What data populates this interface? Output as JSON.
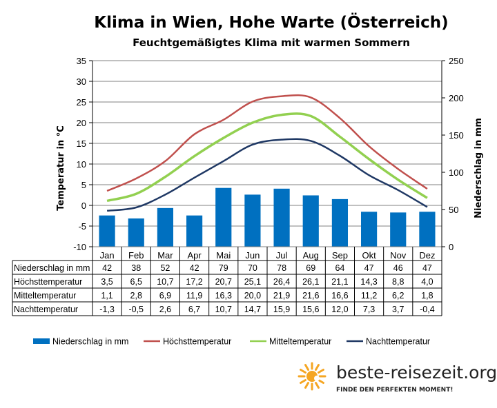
{
  "chart_data": {
    "type": "bar+line",
    "title": "Klima in Wien, Hohe Warte (Österreich)",
    "subtitle": "Feuchtgemäßigtes  Klima mit warmen Sommern",
    "categories": [
      "Jan",
      "Feb",
      "Mar",
      "Apr",
      "Mai",
      "Jun",
      "Jul",
      "Aug",
      "Sep",
      "Okt",
      "Nov",
      "Dez"
    ],
    "y_left": {
      "label": "Temperatur in °C",
      "min": -10,
      "max": 35,
      "ticks": [
        35,
        30,
        25,
        20,
        15,
        10,
        5,
        0,
        -5,
        -10
      ]
    },
    "y_right": {
      "label": "Niederschlag in mm",
      "min": 0,
      "max": 250,
      "ticks": [
        250,
        200,
        150,
        100,
        50,
        0
      ]
    },
    "grid": true,
    "legend_position": "bottom",
    "bars": {
      "name": "Niederschlag in mm",
      "axis": "right",
      "color": "#0070C0",
      "values": [
        42,
        38,
        52,
        42,
        79,
        70,
        78,
        69,
        64,
        47,
        46,
        47
      ]
    },
    "series": [
      {
        "name": "Höchsttemperatur",
        "color": "#C0504D",
        "values": [
          3.5,
          6.5,
          10.7,
          17.2,
          20.7,
          25.1,
          26.4,
          26.1,
          21.1,
          14.3,
          8.8,
          4.0
        ]
      },
      {
        "name": "Mitteltemperatur",
        "color": "#92D050",
        "values": [
          1.1,
          2.8,
          6.9,
          11.9,
          16.3,
          20.0,
          21.9,
          21.6,
          16.6,
          11.2,
          6.2,
          1.8
        ]
      },
      {
        "name": "Nachttemperatur",
        "color": "#1F3864",
        "values": [
          -1.3,
          -0.5,
          2.6,
          6.7,
          10.7,
          14.7,
          15.9,
          15.6,
          12.0,
          7.3,
          3.7,
          -0.4
        ]
      }
    ],
    "table": {
      "rows": [
        {
          "label": "Niederschlag in mm",
          "values": [
            "42",
            "38",
            "52",
            "42",
            "79",
            "70",
            "78",
            "69",
            "64",
            "47",
            "46",
            "47"
          ]
        },
        {
          "label": "Höchsttemperatur",
          "values": [
            "3,5",
            "6,5",
            "10,7",
            "17,2",
            "20,7",
            "25,1",
            "26,4",
            "26,1",
            "21,1",
            "14,3",
            "8,8",
            "4,0"
          ]
        },
        {
          "label": "Mitteltemperatur",
          "values": [
            "1,1",
            "2,8",
            "6,9",
            "11,9",
            "16,3",
            "20,0",
            "21,9",
            "21,6",
            "16,6",
            "11,2",
            "6,2",
            "1,8"
          ]
        },
        {
          "label": "Nachttemperatur",
          "values": [
            "-1,3",
            "-0,5",
            "2,6",
            "6,7",
            "10,7",
            "14,7",
            "15,9",
            "15,6",
            "12,0",
            "7,3",
            "3,7",
            "-0,4"
          ]
        }
      ]
    }
  },
  "branding": {
    "site": "beste-reisezeit.org",
    "slogan": "FINDE DEN PERFEKTEN MOMENT!",
    "logo_icon": "sun-icon",
    "logo_color": "#F5A623"
  }
}
